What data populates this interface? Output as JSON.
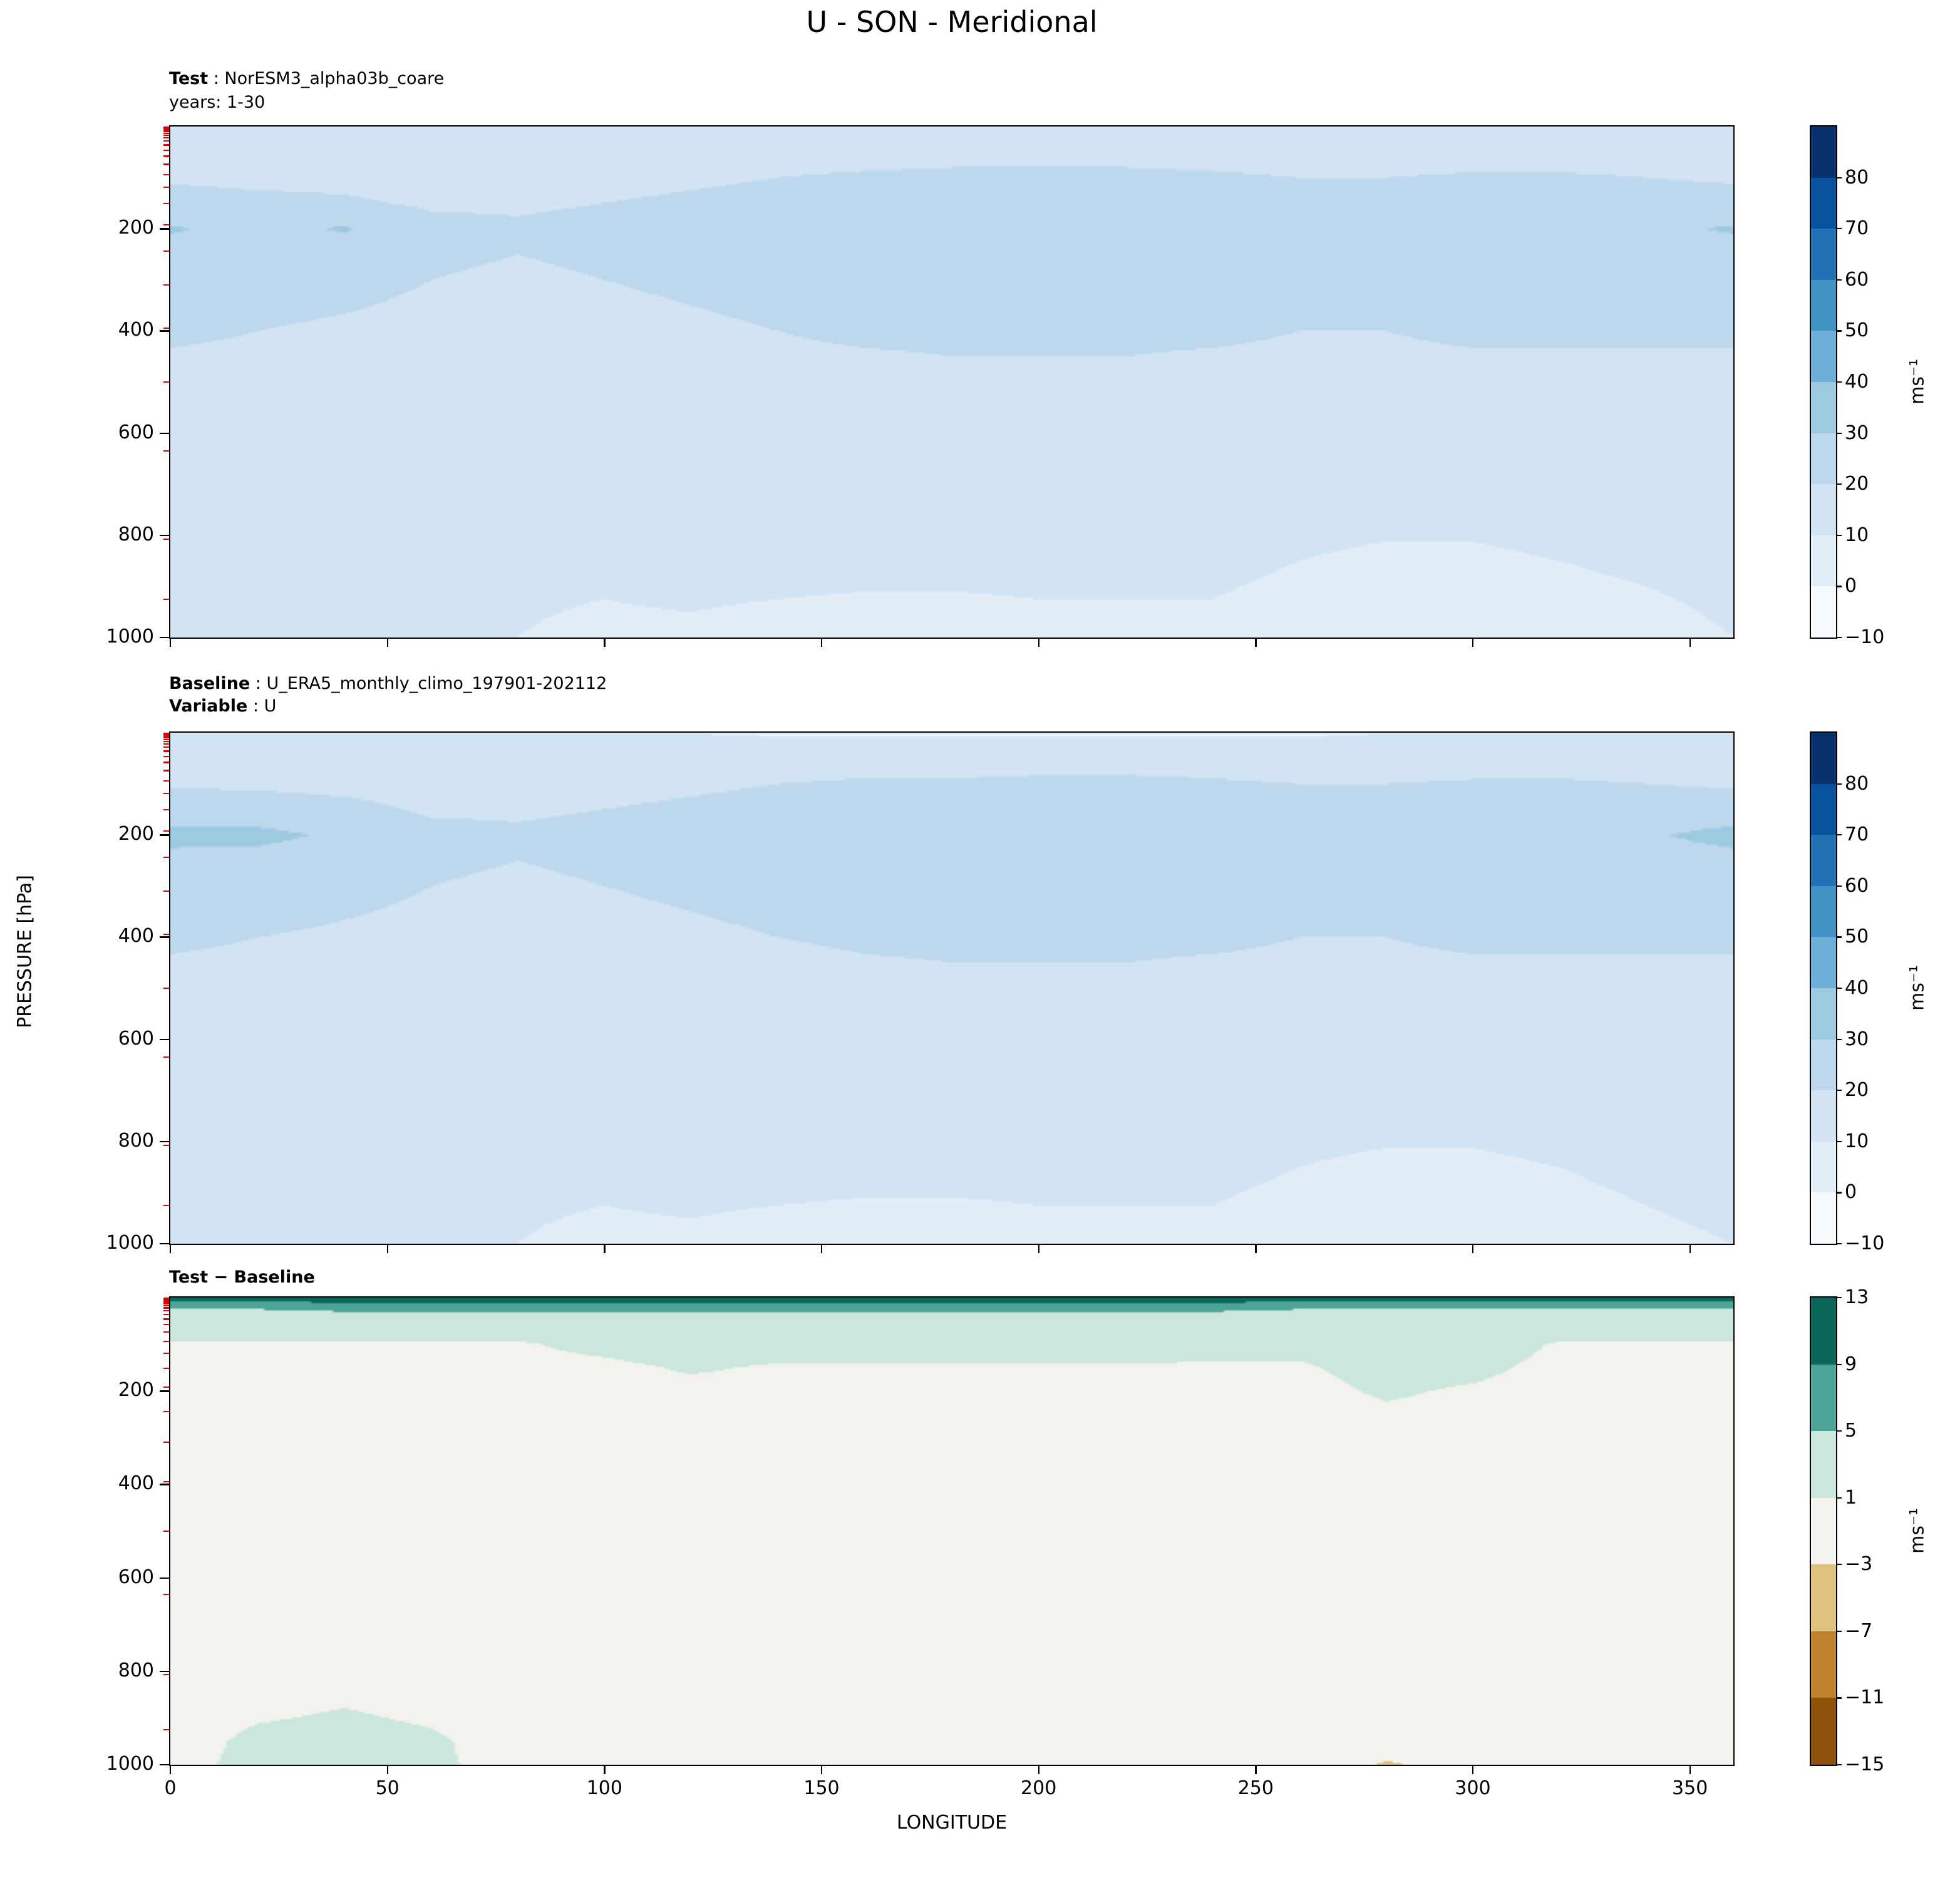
{
  "title": "U - SON - Meridional",
  "annotations": {
    "p1_line1_bold": "Test",
    "p1_line1_rest": " : NorESM3_alpha03b_coare",
    "p1_line2": "years: 1-30",
    "p2_line1_bold": "Baseline",
    "p2_line1_rest": " : U_ERA5_monthly_climo_197901-202112",
    "p2_line2_bold": "Variable",
    "p2_line2_rest": " : U",
    "p3_line1_bold": "Test − Baseline"
  },
  "axes": {
    "xlabel": "LONGITUDE",
    "ylabel": "PRESSURE [hPa]",
    "x_ticks": [
      0,
      50,
      100,
      150,
      200,
      250,
      300,
      350
    ],
    "y_ticks": [
      200,
      400,
      600,
      800,
      1000
    ],
    "red_minor_pressures": [
      1,
      2,
      3,
      4,
      6,
      8,
      10,
      13,
      17,
      22,
      28,
      36,
      46,
      58,
      74,
      94,
      119,
      151,
      192,
      244,
      310,
      394,
      500,
      635,
      807,
      925
    ]
  },
  "colors": {
    "minor_tick_red": "#e10000",
    "frame": "#000000",
    "background": "#ffffff"
  },
  "colorbars": [
    {
      "ticks": [
        -10,
        0,
        10,
        20,
        30,
        40,
        50,
        60,
        70,
        80
      ],
      "unit": "ms⁻¹"
    },
    {
      "ticks": [
        -10,
        0,
        10,
        20,
        30,
        40,
        50,
        60,
        70,
        80
      ],
      "unit": "ms⁻¹"
    },
    {
      "ticks": [
        -15,
        -11,
        -7,
        -3,
        1,
        5,
        9,
        13
      ],
      "unit": "ms⁻¹"
    }
  ],
  "chart_data": [
    {
      "type": "heatmap",
      "name": "Test",
      "title": "U - SON - Meridional (Test: NorESM3_alpha03b_coare, years 1-30)",
      "xlabel": "LONGITUDE",
      "ylabel": "PRESSURE [hPa]",
      "units": "ms⁻¹",
      "p_range": [
        0,
        1000
      ],
      "lons": [
        0,
        20,
        40,
        60,
        80,
        100,
        120,
        140,
        160,
        180,
        200,
        220,
        240,
        260,
        280,
        300,
        320,
        340,
        360
      ],
      "pressures": [
        0,
        50,
        100,
        150,
        200,
        250,
        300,
        400,
        500,
        600,
        700,
        850,
        1000
      ],
      "values": [
        [
          14,
          14,
          14,
          14,
          14,
          14,
          14,
          15,
          15,
          15,
          15,
          15,
          15,
          14,
          14,
          14,
          14,
          14,
          14
        ],
        [
          16,
          16,
          16,
          15,
          15,
          16,
          16,
          17,
          17,
          17,
          17,
          17,
          17,
          16,
          16,
          16,
          16,
          16,
          16
        ],
        [
          19,
          18,
          18,
          17,
          17,
          18,
          19,
          20,
          21,
          22,
          22,
          22,
          21,
          20,
          20,
          21,
          21,
          20,
          19
        ],
        [
          23,
          22,
          21,
          19,
          19,
          20,
          21,
          22,
          24,
          25,
          25,
          25,
          24,
          23,
          22,
          24,
          24,
          23,
          23
        ],
        [
          31,
          27,
          31,
          22,
          21,
          22,
          24,
          25,
          26,
          27,
          27,
          27,
          26,
          25,
          24,
          26,
          27,
          28,
          31
        ],
        [
          26,
          24,
          24,
          21,
          20,
          21,
          23,
          24,
          25,
          26,
          26,
          26,
          25,
          24,
          23,
          25,
          26,
          26,
          26
        ],
        [
          24,
          23,
          22,
          20,
          19,
          20,
          21,
          22,
          23,
          24,
          24,
          24,
          23,
          22,
          22,
          23,
          24,
          24,
          24
        ],
        [
          21,
          20,
          19,
          18,
          17,
          18,
          19,
          20,
          21,
          21,
          21,
          21,
          21,
          20,
          20,
          21,
          21,
          21,
          21
        ],
        [
          18,
          18,
          17,
          16,
          15,
          16,
          17,
          18,
          18,
          19,
          19,
          19,
          18,
          18,
          18,
          18,
          18,
          18,
          18
        ],
        [
          16,
          15,
          15,
          14,
          13,
          14,
          15,
          16,
          16,
          16,
          16,
          16,
          16,
          15,
          15,
          16,
          16,
          16,
          16
        ],
        [
          14,
          13,
          13,
          12,
          12,
          12,
          13,
          14,
          14,
          14,
          14,
          14,
          13,
          13,
          13,
          13,
          14,
          14,
          14
        ],
        [
          12,
          12,
          11,
          11,
          11,
          11,
          12,
          12,
          12,
          12,
          12,
          11,
          11,
          10,
          9,
          9,
          10,
          11,
          12
        ],
        [
          10,
          11,
          10,
          10,
          10,
          9,
          9,
          8,
          7,
          7,
          8,
          9,
          9,
          8,
          7,
          6,
          7,
          8,
          10
        ]
      ],
      "levels": [
        -10,
        0,
        10,
        20,
        30,
        40,
        50,
        60,
        70,
        80,
        90
      ],
      "colors": [
        "#f7fbff",
        "#e2edf8",
        "#d2e3f3",
        "#bdd7ec",
        "#9ecae1",
        "#6baed6",
        "#4292c6",
        "#2171b5",
        "#08519c",
        "#08306b"
      ]
    },
    {
      "type": "heatmap",
      "name": "Baseline",
      "title": "U - SON - Meridional (Baseline: U_ERA5_monthly_climo_197901-202112, Variable U)",
      "xlabel": "LONGITUDE",
      "ylabel": "PRESSURE [hPa]",
      "units": "ms⁻¹",
      "p_range": [
        0,
        1000
      ],
      "lons": [
        0,
        20,
        40,
        60,
        80,
        100,
        120,
        140,
        160,
        180,
        200,
        220,
        240,
        260,
        280,
        300,
        320,
        340,
        360
      ],
      "pressures": [
        0,
        50,
        100,
        150,
        200,
        250,
        300,
        400,
        500,
        600,
        700,
        850,
        1000
      ],
      "values": [
        [
          12,
          12,
          12,
          12,
          12,
          11,
          10,
          9,
          9,
          9,
          9,
          9,
          9,
          9,
          10,
          10,
          11,
          12,
          12
        ],
        [
          15,
          15,
          15,
          14,
          14,
          15,
          15,
          16,
          16,
          16,
          16,
          16,
          16,
          15,
          15,
          15,
          16,
          15,
          15
        ],
        [
          19,
          19,
          18,
          17,
          17,
          18,
          19,
          20,
          21,
          21,
          22,
          22,
          21,
          20,
          20,
          21,
          21,
          20,
          19
        ],
        [
          24,
          23,
          22,
          19,
          19,
          20,
          21,
          22,
          24,
          25,
          25,
          25,
          24,
          23,
          22,
          24,
          25,
          24,
          24
        ],
        [
          33,
          33,
          28,
          22,
          21,
          22,
          24,
          26,
          27,
          27,
          27,
          27,
          26,
          25,
          24,
          26,
          28,
          29,
          33
        ],
        [
          27,
          26,
          24,
          21,
          20,
          21,
          23,
          24,
          25,
          26,
          26,
          26,
          25,
          24,
          23,
          25,
          26,
          26,
          27
        ],
        [
          25,
          24,
          22,
          20,
          19,
          20,
          21,
          22,
          23,
          24,
          24,
          24,
          23,
          22,
          22,
          23,
          24,
          24,
          25
        ],
        [
          21,
          20,
          19,
          18,
          17,
          18,
          19,
          20,
          21,
          21,
          21,
          21,
          21,
          20,
          20,
          21,
          21,
          21,
          21
        ],
        [
          18,
          18,
          17,
          16,
          15,
          16,
          17,
          17,
          18,
          19,
          19,
          19,
          18,
          18,
          18,
          18,
          18,
          18,
          18
        ],
        [
          16,
          15,
          15,
          14,
          13,
          13,
          14,
          15,
          16,
          16,
          16,
          16,
          16,
          15,
          15,
          16,
          16,
          16,
          16
        ],
        [
          14,
          13,
          13,
          12,
          12,
          12,
          13,
          13,
          14,
          14,
          14,
          14,
          13,
          13,
          13,
          13,
          14,
          14,
          14
        ],
        [
          12,
          12,
          11,
          11,
          11,
          11,
          12,
          12,
          12,
          12,
          12,
          11,
          11,
          10,
          9,
          9,
          10,
          11,
          12
        ],
        [
          10,
          11,
          10,
          10,
          10,
          9,
          9,
          8,
          7,
          7,
          8,
          9,
          9,
          8,
          7,
          6,
          8,
          9,
          10
        ]
      ],
      "levels": [
        -10,
        0,
        10,
        20,
        30,
        40,
        50,
        60,
        70,
        80,
        90
      ],
      "colors": [
        "#f7fbff",
        "#e2edf8",
        "#d2e3f3",
        "#bdd7ec",
        "#9ecae1",
        "#6baed6",
        "#4292c6",
        "#2171b5",
        "#08519c",
        "#08306b"
      ]
    },
    {
      "type": "heatmap",
      "name": "Test − Baseline",
      "title": "U - SON - Meridional (Test − Baseline difference)",
      "xlabel": "LONGITUDE",
      "ylabel": "PRESSURE [hPa]",
      "units": "ms⁻¹",
      "p_range": [
        0,
        1000
      ],
      "lons": [
        0,
        20,
        40,
        60,
        80,
        100,
        120,
        140,
        160,
        180,
        200,
        220,
        240,
        260,
        280,
        300,
        320,
        340,
        360
      ],
      "pressures": [
        0,
        15,
        30,
        60,
        100,
        150,
        200,
        300,
        500,
        700,
        850,
        950,
        1000
      ],
      "values": [
        [
          11,
          11,
          12,
          12,
          12,
          12,
          12,
          12,
          12,
          12,
          12,
          12,
          12,
          11,
          11,
          11,
          11,
          11,
          11
        ],
        [
          7,
          7,
          8,
          8,
          8,
          8,
          8,
          8,
          8,
          8,
          8,
          8,
          8,
          7,
          7,
          7,
          7,
          7,
          7
        ],
        [
          4,
          4,
          5,
          5,
          5,
          5,
          5,
          5,
          5,
          5,
          5,
          5,
          5,
          4,
          4,
          4,
          4,
          4,
          4
        ],
        [
          2,
          2,
          2,
          2,
          2,
          3,
          3,
          3,
          3,
          3,
          3,
          3,
          3,
          3,
          3,
          3,
          2,
          2,
          2
        ],
        [
          0.8,
          0.8,
          0.8,
          0.8,
          0.8,
          1.5,
          2,
          1.8,
          1.8,
          1.8,
          1.8,
          1.8,
          1.6,
          1.5,
          2,
          2,
          0.8,
          0.8,
          0.8
        ],
        [
          0.5,
          0.5,
          0.5,
          0.5,
          0.5,
          0.6,
          1.2,
          0.8,
          0.8,
          0.8,
          0.8,
          0.8,
          0.8,
          0.8,
          1.6,
          1.4,
          0.5,
          0.5,
          0.5
        ],
        [
          0.4,
          0.4,
          0.4,
          0.4,
          0.4,
          0.4,
          0.5,
          0.5,
          0.5,
          0.5,
          0.5,
          0.5,
          0.5,
          0.5,
          1.2,
          0.8,
          0.4,
          0.4,
          0.4
        ],
        [
          0.3,
          0.3,
          0.3,
          0.3,
          0.3,
          0.3,
          0.3,
          0.3,
          0.3,
          0.3,
          0.3,
          0.3,
          0.3,
          0.3,
          0.3,
          0.3,
          0.3,
          0.3,
          0.3
        ],
        [
          0.2,
          0.2,
          0.2,
          0.2,
          0.2,
          0.2,
          0.2,
          0.2,
          0.2,
          0.2,
          0.2,
          0.2,
          0.2,
          0.2,
          0.2,
          0.2,
          0.2,
          0.2,
          0.2
        ],
        [
          0.3,
          0.3,
          0.3,
          0.3,
          0.3,
          0.3,
          0.3,
          0.3,
          0.3,
          0.3,
          0.3,
          0.3,
          0.3,
          0.3,
          0.3,
          0.3,
          0.3,
          0.3,
          0.3
        ],
        [
          0.3,
          0.5,
          0.8,
          0.5,
          0.3,
          0.3,
          0.3,
          0.3,
          0.3,
          0.3,
          0.3,
          0.3,
          0.3,
          0.3,
          0.3,
          0.3,
          0.3,
          0.3,
          0.3
        ],
        [
          0.4,
          1.3,
          1.5,
          1.2,
          0.4,
          0.4,
          0.4,
          0.4,
          0.4,
          0.4,
          0.4,
          0.4,
          0.4,
          0.4,
          0.2,
          0.2,
          0.4,
          0.4,
          0.4
        ],
        [
          0.4,
          1.5,
          1.7,
          1.3,
          0.4,
          0.4,
          0.4,
          0.4,
          0.4,
          0.4,
          0.4,
          0.4,
          0.4,
          0.4,
          -3.6,
          -1,
          0.4,
          0.4,
          0.4
        ]
      ],
      "levels": [
        -15,
        -11,
        -7,
        -3,
        1,
        5,
        9,
        13
      ],
      "colors": [
        "#8c510a",
        "#bf812d",
        "#dfc27d",
        "#f3f2ec",
        "#cbe7dd",
        "#4ba496",
        "#0b655a"
      ]
    }
  ]
}
